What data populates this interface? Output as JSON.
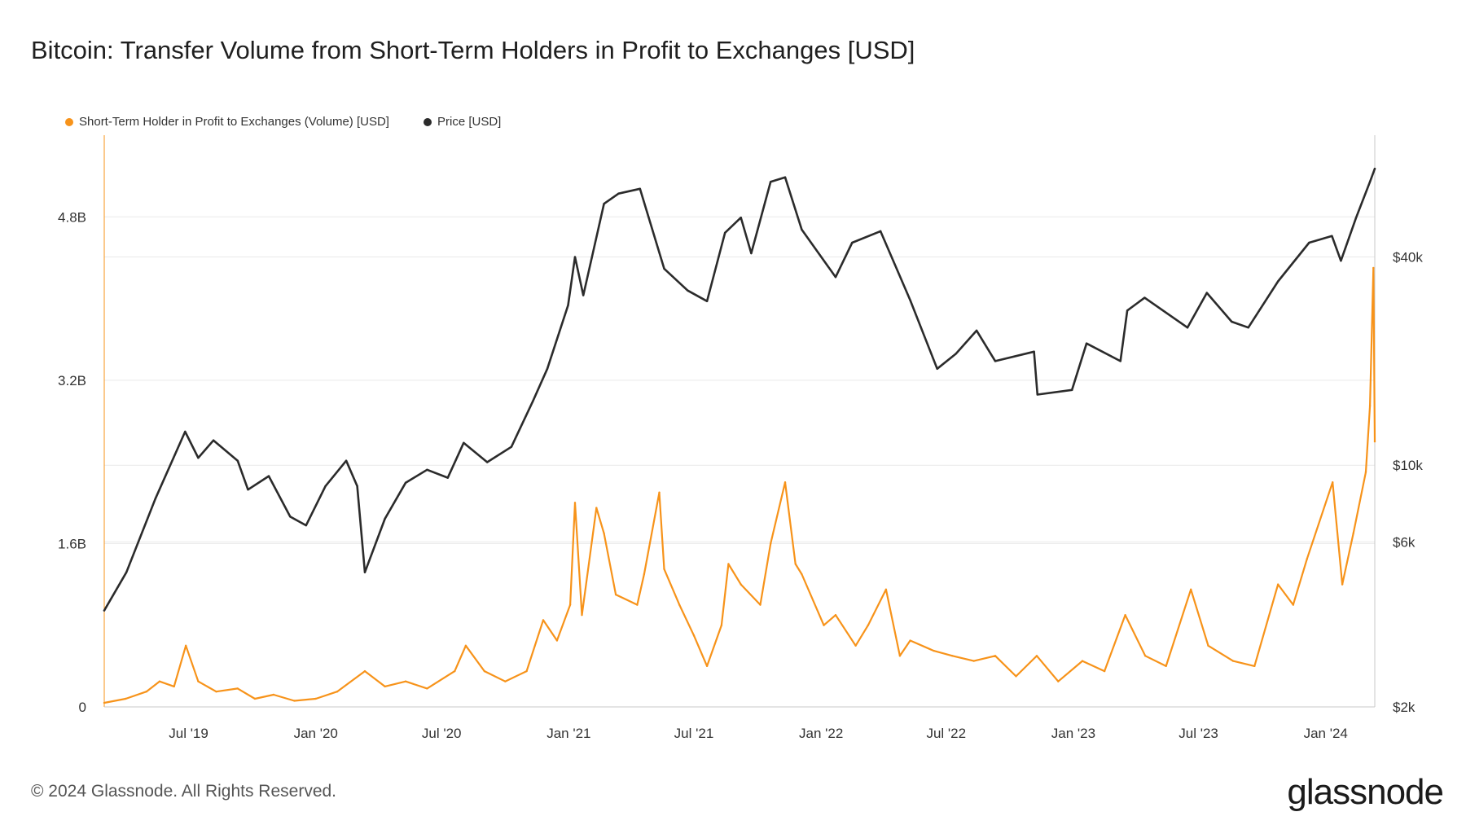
{
  "title": "Bitcoin: Transfer Volume from Short-Term Holders in Profit to Exchanges [USD]",
  "footer": "© 2024 Glassnode. All Rights Reserved.",
  "logo": "glassnode",
  "colors": {
    "volume": "#f7931a",
    "price": "#2b2b2b",
    "grid": "#e9e9e9",
    "axis": "#c8c8c8"
  },
  "legend": [
    {
      "label": "Short-Term Holder in Profit to Exchanges (Volume) [USD]",
      "color": "#f7931a"
    },
    {
      "label": "Price [USD]",
      "color": "#2b2b2b"
    }
  ],
  "chart_data": {
    "type": "line",
    "x_range": [
      "2019-03-01",
      "2024-03-12"
    ],
    "x_ticks": [
      {
        "date": "2019-07-01",
        "label": "Jul '19"
      },
      {
        "date": "2020-01-01",
        "label": "Jan '20"
      },
      {
        "date": "2020-07-01",
        "label": "Jul '20"
      },
      {
        "date": "2021-01-01",
        "label": "Jan '21"
      },
      {
        "date": "2021-07-01",
        "label": "Jul '21"
      },
      {
        "date": "2022-01-01",
        "label": "Jan '22"
      },
      {
        "date": "2022-07-01",
        "label": "Jul '22"
      },
      {
        "date": "2023-01-01",
        "label": "Jan '23"
      },
      {
        "date": "2023-07-01",
        "label": "Jul '23"
      },
      {
        "date": "2024-01-01",
        "label": "Jan '24"
      }
    ],
    "y_left": {
      "scale": "linear",
      "range": [
        0,
        5600000000
      ],
      "ticks": [
        {
          "value": 0,
          "label": "0"
        },
        {
          "value": 1600000000,
          "label": "1.6B"
        },
        {
          "value": 3200000000,
          "label": "3.2B"
        },
        {
          "value": 4800000000,
          "label": "4.8B"
        }
      ]
    },
    "y_right": {
      "scale": "log",
      "range": [
        2000,
        90000
      ],
      "ticks": [
        {
          "value": 2000,
          "label": "$2k"
        },
        {
          "value": 6000,
          "label": "$6k"
        },
        {
          "value": 10000,
          "label": "$10k"
        },
        {
          "value": 40000,
          "label": "$40k"
        }
      ]
    },
    "grid": true,
    "legend_position": "top-left",
    "series": [
      {
        "name": "Short-Term Holder in Profit to Exchanges (Volume) [USD]",
        "axis": "left",
        "values": [
          [
            "2019-03-01",
            40000000
          ],
          [
            "2019-04-01",
            80000000
          ],
          [
            "2019-05-01",
            150000000
          ],
          [
            "2019-05-20",
            250000000
          ],
          [
            "2019-06-10",
            200000000
          ],
          [
            "2019-06-27",
            600000000
          ],
          [
            "2019-07-15",
            250000000
          ],
          [
            "2019-08-10",
            150000000
          ],
          [
            "2019-09-10",
            180000000
          ],
          [
            "2019-10-05",
            80000000
          ],
          [
            "2019-11-01",
            120000000
          ],
          [
            "2019-12-01",
            60000000
          ],
          [
            "2020-01-01",
            80000000
          ],
          [
            "2020-02-01",
            150000000
          ],
          [
            "2020-03-12",
            350000000
          ],
          [
            "2020-04-10",
            200000000
          ],
          [
            "2020-05-10",
            250000000
          ],
          [
            "2020-06-10",
            180000000
          ],
          [
            "2020-07-20",
            350000000
          ],
          [
            "2020-08-05",
            600000000
          ],
          [
            "2020-09-01",
            350000000
          ],
          [
            "2020-10-01",
            250000000
          ],
          [
            "2020-11-01",
            350000000
          ],
          [
            "2020-11-25",
            850000000
          ],
          [
            "2020-12-15",
            650000000
          ],
          [
            "2021-01-03",
            1000000000
          ],
          [
            "2021-01-10",
            2000000000
          ],
          [
            "2021-01-20",
            900000000
          ],
          [
            "2021-02-10",
            1950000000
          ],
          [
            "2021-02-21",
            1700000000
          ],
          [
            "2021-03-10",
            1100000000
          ],
          [
            "2021-04-10",
            1000000000
          ],
          [
            "2021-04-20",
            1300000000
          ],
          [
            "2021-05-12",
            2100000000
          ],
          [
            "2021-05-19",
            1350000000
          ],
          [
            "2021-06-10",
            1000000000
          ],
          [
            "2021-07-01",
            700000000
          ],
          [
            "2021-07-20",
            400000000
          ],
          [
            "2021-08-10",
            800000000
          ],
          [
            "2021-08-20",
            1400000000
          ],
          [
            "2021-09-07",
            1200000000
          ],
          [
            "2021-10-05",
            1000000000
          ],
          [
            "2021-10-20",
            1600000000
          ],
          [
            "2021-11-10",
            2200000000
          ],
          [
            "2021-11-25",
            1400000000
          ],
          [
            "2021-12-04",
            1300000000
          ],
          [
            "2022-01-05",
            800000000
          ],
          [
            "2022-01-22",
            900000000
          ],
          [
            "2022-02-20",
            600000000
          ],
          [
            "2022-03-10",
            800000000
          ],
          [
            "2022-04-05",
            1150000000
          ],
          [
            "2022-04-25",
            500000000
          ],
          [
            "2022-05-10",
            650000000
          ],
          [
            "2022-06-13",
            550000000
          ],
          [
            "2022-07-10",
            500000000
          ],
          [
            "2022-08-10",
            450000000
          ],
          [
            "2022-09-10",
            500000000
          ],
          [
            "2022-10-10",
            300000000
          ],
          [
            "2022-11-09",
            500000000
          ],
          [
            "2022-12-10",
            250000000
          ],
          [
            "2023-01-14",
            450000000
          ],
          [
            "2023-02-15",
            350000000
          ],
          [
            "2023-03-17",
            900000000
          ],
          [
            "2023-04-15",
            500000000
          ],
          [
            "2023-05-15",
            400000000
          ],
          [
            "2023-06-20",
            1150000000
          ],
          [
            "2023-07-15",
            600000000
          ],
          [
            "2023-08-20",
            450000000
          ],
          [
            "2023-09-20",
            400000000
          ],
          [
            "2023-10-24",
            1200000000
          ],
          [
            "2023-11-15",
            1000000000
          ],
          [
            "2023-12-05",
            1450000000
          ],
          [
            "2024-01-11",
            2200000000
          ],
          [
            "2024-01-25",
            1200000000
          ],
          [
            "2024-02-10",
            1700000000
          ],
          [
            "2024-02-28",
            2300000000
          ],
          [
            "2024-03-05",
            2950000000
          ],
          [
            "2024-03-10",
            4300000000
          ],
          [
            "2024-03-12",
            2600000000
          ]
        ]
      },
      {
        "name": "Price [USD]",
        "axis": "right",
        "values": [
          [
            "2019-03-01",
            3800
          ],
          [
            "2019-04-02",
            4900
          ],
          [
            "2019-05-14",
            8000
          ],
          [
            "2019-06-26",
            12500
          ],
          [
            "2019-07-15",
            10500
          ],
          [
            "2019-08-06",
            11800
          ],
          [
            "2019-09-10",
            10300
          ],
          [
            "2019-09-25",
            8500
          ],
          [
            "2019-10-25",
            9300
          ],
          [
            "2019-11-25",
            7100
          ],
          [
            "2019-12-18",
            6700
          ],
          [
            "2020-01-15",
            8700
          ],
          [
            "2020-02-14",
            10300
          ],
          [
            "2020-03-01",
            8700
          ],
          [
            "2020-03-12",
            4900
          ],
          [
            "2020-04-10",
            7000
          ],
          [
            "2020-05-10",
            8900
          ],
          [
            "2020-06-10",
            9700
          ],
          [
            "2020-07-10",
            9200
          ],
          [
            "2020-08-02",
            11600
          ],
          [
            "2020-09-05",
            10200
          ],
          [
            "2020-10-10",
            11300
          ],
          [
            "2020-11-10",
            15300
          ],
          [
            "2020-12-01",
            19000
          ],
          [
            "2020-12-31",
            29000
          ],
          [
            "2021-01-10",
            40000
          ],
          [
            "2021-01-22",
            31000
          ],
          [
            "2021-02-21",
            57000
          ],
          [
            "2021-03-14",
            61000
          ],
          [
            "2021-04-14",
            63000
          ],
          [
            "2021-05-19",
            37000
          ],
          [
            "2021-06-22",
            32000
          ],
          [
            "2021-07-20",
            29800
          ],
          [
            "2021-08-15",
            47000
          ],
          [
            "2021-09-07",
            52000
          ],
          [
            "2021-09-22",
            41000
          ],
          [
            "2021-10-20",
            66000
          ],
          [
            "2021-11-10",
            68000
          ],
          [
            "2021-12-04",
            48000
          ],
          [
            "2022-01-22",
            35000
          ],
          [
            "2022-02-15",
            44000
          ],
          [
            "2022-03-28",
            47500
          ],
          [
            "2022-05-10",
            30000
          ],
          [
            "2022-06-18",
            19000
          ],
          [
            "2022-07-15",
            21000
          ],
          [
            "2022-08-14",
            24500
          ],
          [
            "2022-09-10",
            20000
          ],
          [
            "2022-11-05",
            21300
          ],
          [
            "2022-11-10",
            16000
          ],
          [
            "2022-12-30",
            16500
          ],
          [
            "2023-01-20",
            22500
          ],
          [
            "2023-03-10",
            20000
          ],
          [
            "2023-03-20",
            28000
          ],
          [
            "2023-04-14",
            30500
          ],
          [
            "2023-06-15",
            25000
          ],
          [
            "2023-07-13",
            31500
          ],
          [
            "2023-08-18",
            26000
          ],
          [
            "2023-09-11",
            25000
          ],
          [
            "2023-10-24",
            34000
          ],
          [
            "2023-12-08",
            44000
          ],
          [
            "2024-01-10",
            46000
          ],
          [
            "2024-01-23",
            39000
          ],
          [
            "2024-02-14",
            52000
          ],
          [
            "2024-03-05",
            66000
          ],
          [
            "2024-03-12",
            72000
          ]
        ]
      }
    ]
  }
}
